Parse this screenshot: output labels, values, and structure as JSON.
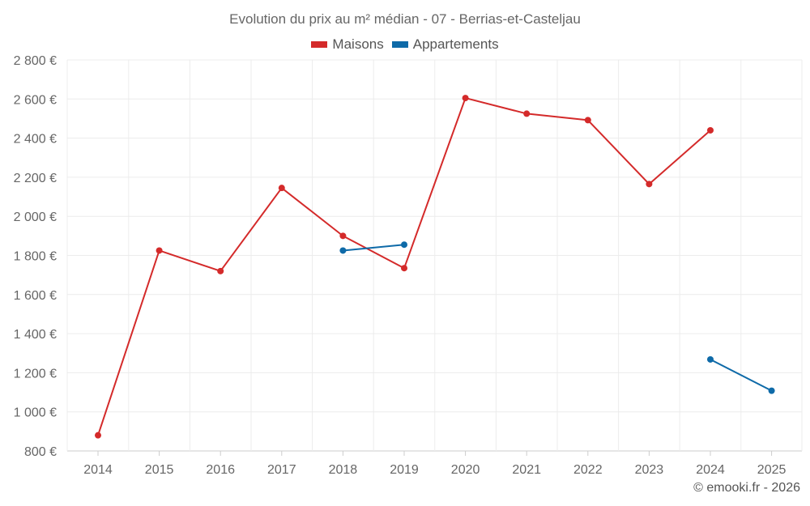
{
  "chart_data": {
    "type": "line",
    "title": "Evolution du prix au m² médian - 07 - Berrias-et-Casteljau",
    "categories": [
      "2014",
      "2015",
      "2016",
      "2017",
      "2018",
      "2019",
      "2020",
      "2021",
      "2022",
      "2023",
      "2024",
      "2025"
    ],
    "y_ticks": [
      "800 €",
      "1 000 €",
      "1 200 €",
      "1 400 €",
      "1 600 €",
      "1 800 €",
      "2 000 €",
      "2 200 €",
      "2 400 €",
      "2 600 €",
      "2 800 €"
    ],
    "ylim": [
      800,
      2800
    ],
    "grid": true,
    "legend_position": "top-center",
    "series": [
      {
        "name": "Maisons",
        "color": "#d42a2a",
        "values": [
          880,
          1825,
          1720,
          2145,
          1900,
          1735,
          2605,
          2525,
          2492,
          2165,
          2440,
          null
        ]
      },
      {
        "name": "Appartements",
        "color": "#0e6aa8",
        "values": [
          null,
          null,
          null,
          null,
          1825,
          1855,
          null,
          null,
          null,
          null,
          1268,
          1108
        ]
      }
    ]
  },
  "credit": "© emooki.fr - 2026"
}
